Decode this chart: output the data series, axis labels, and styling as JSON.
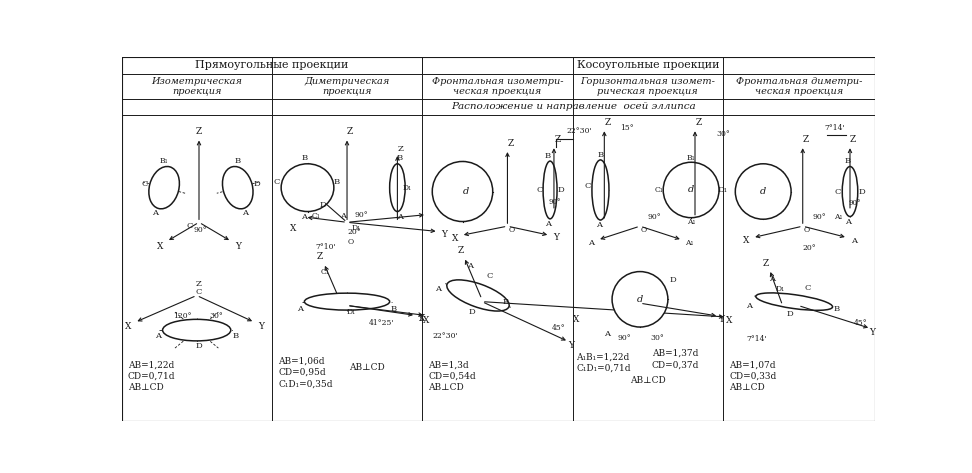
{
  "title_rect": "Прямоугольные проекции",
  "title_oblique": "Косоугольные проекции",
  "col_headers": [
    "Изометрическая\nпроекция",
    "Диметрическая\nпроекция",
    "Фронтальная изометри-\nческая проекция",
    "Горизонтальная изомет-\nрическая проекция",
    "Фронтальная диметри-\nческая проекция"
  ],
  "center_title": "Расположение и направление  осей эллипса",
  "bg_color": "#ffffff",
  "line_color": "#1a1a1a",
  "cols": [
    0,
    194,
    388,
    582,
    776,
    972
  ],
  "row1": 22,
  "row2": 55,
  "row3": 75
}
